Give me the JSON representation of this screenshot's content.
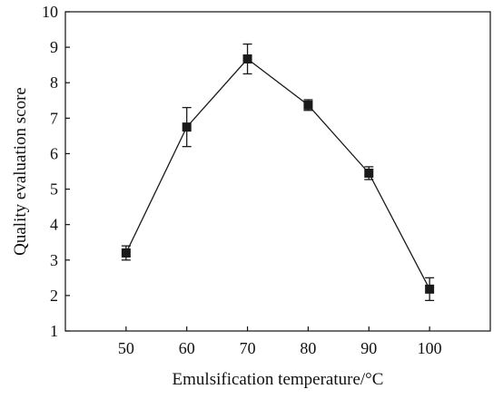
{
  "chart_data": {
    "type": "line",
    "title": "",
    "xlabel": "Emulsification temperature/°C",
    "ylabel": "Quality evaluation score",
    "x": [
      50,
      60,
      70,
      80,
      90,
      100
    ],
    "xticks": [
      "50",
      "60",
      "70",
      "80",
      "90",
      "100"
    ],
    "yticks": [
      "1",
      "2",
      "3",
      "4",
      "5",
      "6",
      "7",
      "8",
      "9",
      "10"
    ],
    "xlim": [
      40,
      110
    ],
    "ylim": [
      1,
      10
    ],
    "grid": false,
    "legend": "none",
    "series": [
      {
        "values": [
          3.2,
          6.75,
          8.67,
          7.37,
          5.45,
          2.18
        ],
        "error": [
          0.2,
          0.55,
          0.42,
          0.15,
          0.18,
          0.32
        ],
        "marker": "square",
        "color": "#1a1a1a"
      }
    ]
  }
}
